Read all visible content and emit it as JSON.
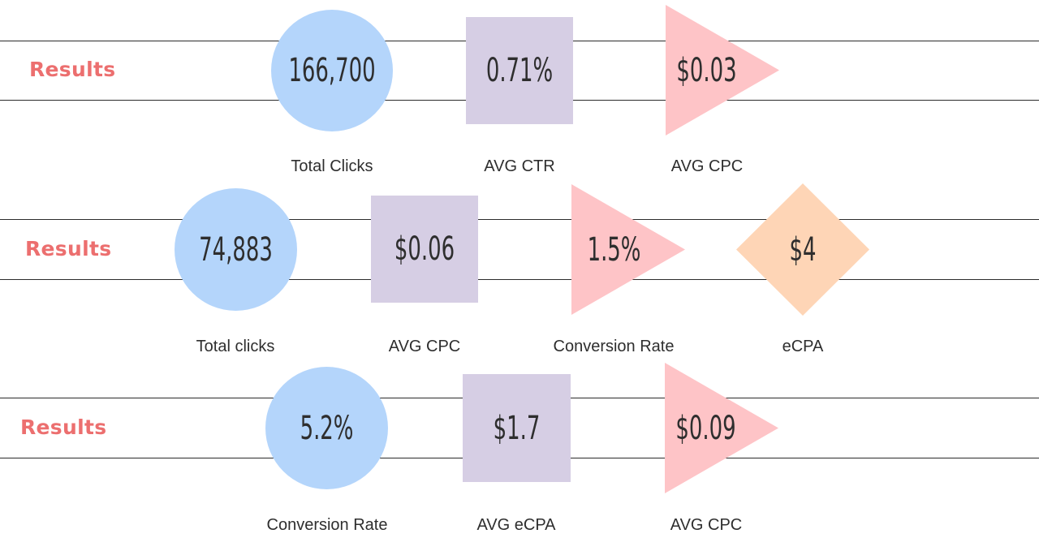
{
  "rows": [
    {
      "label": "Results",
      "metrics": [
        {
          "shape": "circle",
          "value": "166,700",
          "caption": "Total Clicks"
        },
        {
          "shape": "square",
          "value": "0.71%",
          "caption": "AVG CTR"
        },
        {
          "shape": "triangle",
          "value": "$0.03",
          "caption": "AVG CPC"
        }
      ]
    },
    {
      "label": "Results",
      "metrics": [
        {
          "shape": "circle",
          "value": "74,883",
          "caption": "Total clicks"
        },
        {
          "shape": "square",
          "value": "$0.06",
          "caption": "AVG CPC"
        },
        {
          "shape": "triangle",
          "value": "1.5%",
          "caption": "Conversion Rate"
        },
        {
          "shape": "diamond",
          "value": "$4",
          "caption": "eCPA"
        }
      ]
    },
    {
      "label": "Results",
      "metrics": [
        {
          "shape": "circle",
          "value": "5.2%",
          "caption": "Conversion Rate"
        },
        {
          "shape": "square",
          "value": "$1.7",
          "caption": "AVG eCPA"
        },
        {
          "shape": "triangle",
          "value": "$0.09",
          "caption": "AVG CPC"
        }
      ]
    }
  ],
  "colors": {
    "label": "#ec6f6f",
    "circle": "#b4d5fb",
    "square": "#d6cee4",
    "triangle": "#fec4c7",
    "diamond": "#fed5b6",
    "text": "#2e2e2e",
    "rule": "#2b2b2b"
  }
}
